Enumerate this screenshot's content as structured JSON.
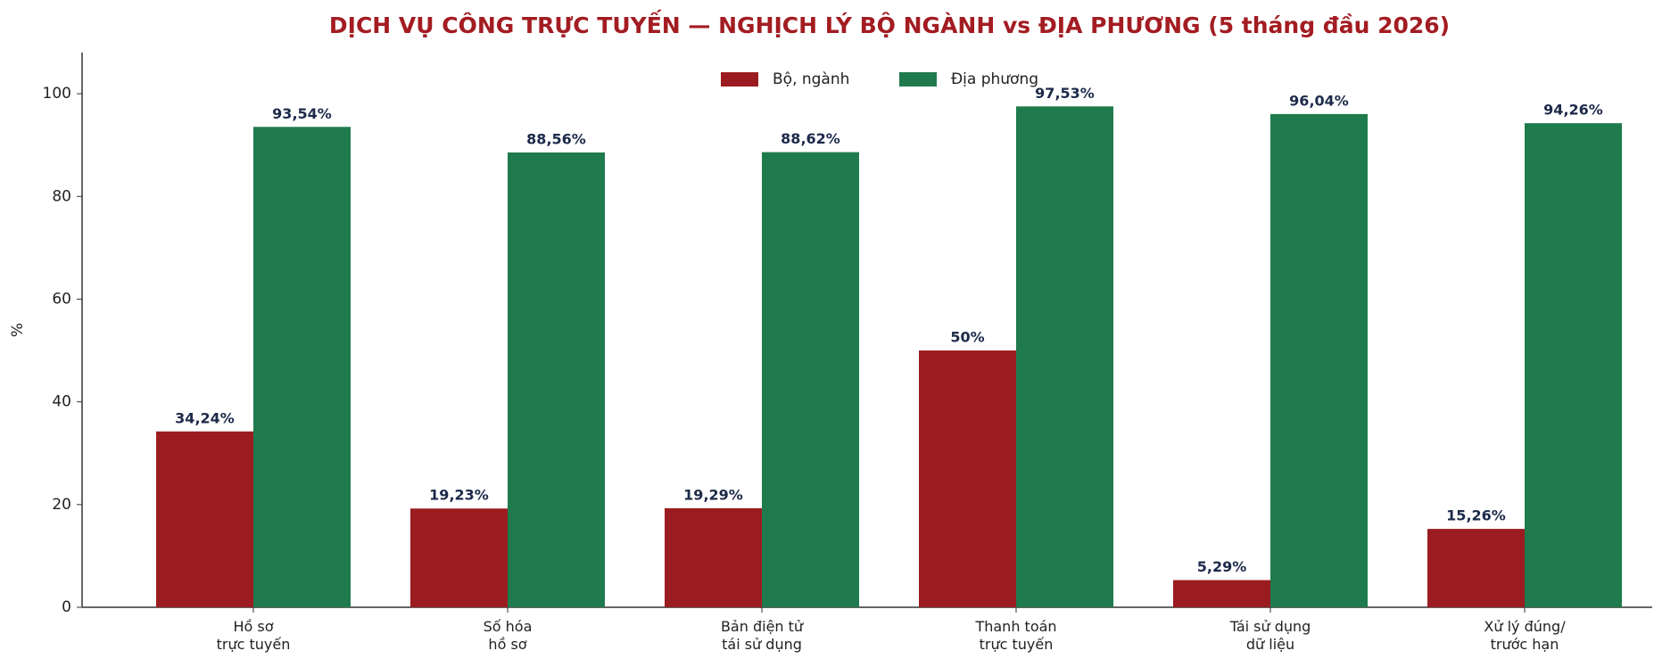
{
  "chart_data": {
    "type": "bar",
    "title": "DỊCH VỤ CÔNG TRỰC TUYẾN — NGHỊCH LÝ BỘ NGÀNH vs ĐỊA PHƯƠNG (5 tháng đầu 2026)",
    "y_label": "%",
    "categories": [
      "Hồ sơ\ntrực tuyến",
      "Số hóa\nhồ sơ",
      "Bản điện tử\ntái sử dụng",
      "Thanh toán\ntrực tuyến",
      "Tái sử dụng\ndữ liệu",
      "Xử lý đúng/\ntrước hạn"
    ],
    "series": [
      {
        "name": "Bộ, ngành",
        "color": "#9b1c20",
        "values": [
          34.24,
          19.23,
          19.29,
          50,
          5.29,
          15.26
        ],
        "value_labels": [
          "34,24%",
          "19,23%",
          "19,29%",
          "50%",
          "5,29%",
          "15,26%"
        ]
      },
      {
        "name": "Địa phương",
        "color": "#1f7a4d",
        "values": [
          93.54,
          88.56,
          88.62,
          97.53,
          96.04,
          94.26
        ],
        "value_labels": [
          "93,54%",
          "88,56%",
          "88,62%",
          "97,53%",
          "96,04%",
          "94,26%"
        ]
      }
    ],
    "ylim": [
      0,
      108
    ],
    "yticks": [
      0,
      20,
      40,
      60,
      80,
      100
    ],
    "grid": false,
    "legend": "upper center"
  }
}
